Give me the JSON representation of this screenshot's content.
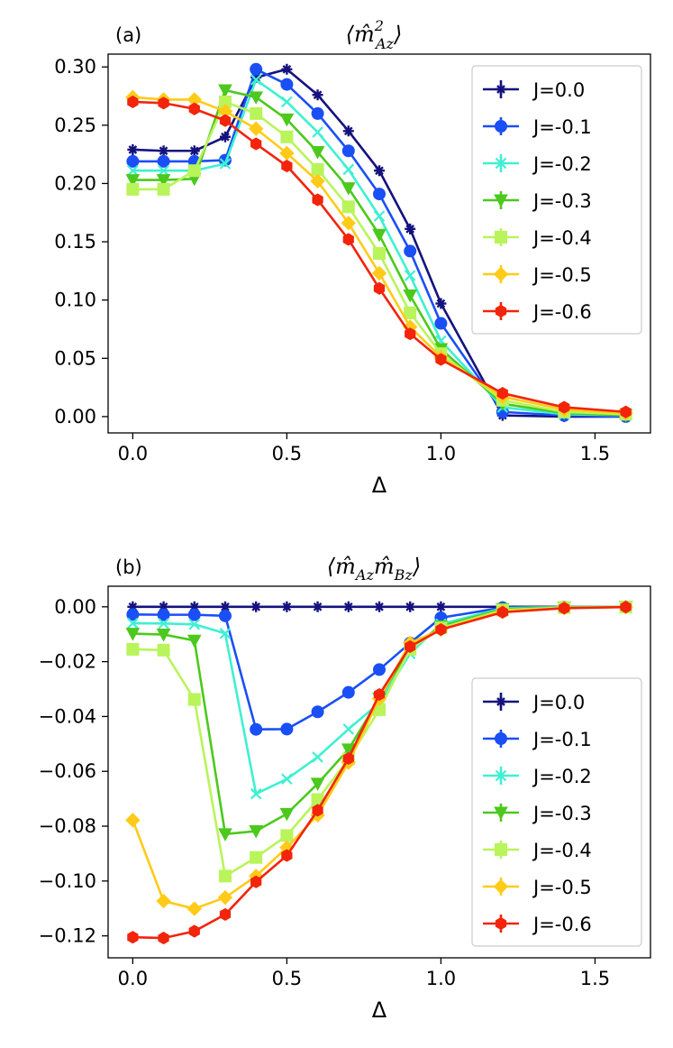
{
  "colors": {
    "J=0.0": "#14127e",
    "J=-0.1": "#1a4ff5",
    "J=-0.2": "#3ef0d2",
    "J=-0.3": "#4cc91c",
    "J=-0.4": "#b9f45a",
    "J=-0.5": "#ffcb18",
    "J=-0.6": "#f2240b"
  },
  "chart_data": [
    {
      "type": "line",
      "panel_label": "(a)",
      "title": "⟨m̂²Az⟩",
      "title_base": "⟨m̂",
      "title_sup": "2",
      "title_sub": "Az",
      "title_close": "⟩",
      "xlabel": "Δ",
      "ylabel": "",
      "xlim": [
        -0.08,
        1.68
      ],
      "ylim": [
        -0.014,
        0.311
      ],
      "xticks": [
        0.0,
        0.5,
        1.0,
        1.5
      ],
      "xtick_labels": [
        "0.0",
        "0.5",
        "1.0",
        "1.5"
      ],
      "yticks": [
        0.0,
        0.05,
        0.1,
        0.15,
        0.2,
        0.25,
        0.3
      ],
      "ytick_labels": [
        "0.00",
        "0.05",
        "0.10",
        "0.15",
        "0.20",
        "0.25",
        "0.30"
      ],
      "legend_position": "top-right",
      "x": [
        0.0,
        0.1,
        0.2,
        0.3,
        0.4,
        0.5,
        0.6,
        0.7,
        0.8,
        0.9,
        1.0,
        1.2,
        1.4,
        1.6
      ],
      "series": [
        {
          "name": "J=0.0",
          "marker": "plus",
          "values": [
            0.229,
            0.228,
            0.228,
            0.24,
            0.291,
            0.298,
            0.276,
            0.245,
            0.211,
            0.161,
            0.097,
            0.001,
            0.0,
            0.0
          ]
        },
        {
          "name": "J=-0.1",
          "marker": "circle",
          "values": [
            0.219,
            0.219,
            0.219,
            0.22,
            0.298,
            0.285,
            0.26,
            0.228,
            0.191,
            0.142,
            0.08,
            0.004,
            0.001,
            0.0
          ]
        },
        {
          "name": "J=-0.2",
          "marker": "x",
          "values": [
            0.211,
            0.211,
            0.211,
            0.217,
            0.289,
            0.27,
            0.244,
            0.212,
            0.172,
            0.121,
            0.065,
            0.008,
            0.002,
            0.001
          ]
        },
        {
          "name": "J=-0.3",
          "marker": "tri-down",
          "values": [
            0.203,
            0.203,
            0.204,
            0.28,
            0.274,
            0.255,
            0.227,
            0.196,
            0.156,
            0.104,
            0.058,
            0.011,
            0.003,
            0.001
          ]
        },
        {
          "name": "J=-0.4",
          "marker": "square",
          "values": [
            0.195,
            0.195,
            0.211,
            0.27,
            0.26,
            0.24,
            0.212,
            0.18,
            0.14,
            0.089,
            0.054,
            0.014,
            0.004,
            0.002
          ]
        },
        {
          "name": "J=-0.5",
          "marker": "diamond",
          "values": [
            0.274,
            0.272,
            0.272,
            0.262,
            0.247,
            0.226,
            0.202,
            0.166,
            0.123,
            0.077,
            0.051,
            0.017,
            0.006,
            0.003
          ]
        },
        {
          "name": "J=-0.6",
          "marker": "hexagon",
          "values": [
            0.27,
            0.269,
            0.264,
            0.254,
            0.234,
            0.215,
            0.186,
            0.152,
            0.11,
            0.071,
            0.049,
            0.02,
            0.008,
            0.004
          ]
        }
      ]
    },
    {
      "type": "line",
      "panel_label": "(b)",
      "title": "⟨m̂Az m̂Bz⟩",
      "title_base": "⟨m̂",
      "title_sub": "Az",
      "title_base2": "m̂",
      "title_sub2": "Bz",
      "title_close": "⟩",
      "xlabel": "Δ",
      "ylabel": "",
      "xlim": [
        -0.08,
        1.68
      ],
      "ylim": [
        -0.128,
        0.0075
      ],
      "xticks": [
        0.0,
        0.5,
        1.0,
        1.5
      ],
      "xtick_labels": [
        "0.0",
        "0.5",
        "1.0",
        "1.5"
      ],
      "yticks": [
        0.0,
        -0.02,
        -0.04,
        -0.06,
        -0.08,
        -0.1,
        -0.12
      ],
      "ytick_labels": [
        "0.00",
        "−0.02",
        "−0.04",
        "−0.06",
        "−0.08",
        "−0.10",
        "−0.12"
      ],
      "legend_position": "lower-right",
      "x": [
        0.0,
        0.1,
        0.2,
        0.3,
        0.4,
        0.5,
        0.6,
        0.7,
        0.8,
        0.9,
        1.0,
        1.2,
        1.4,
        1.6
      ],
      "series": [
        {
          "name": "J=0.0",
          "marker": "plus",
          "values": [
            0.0,
            0.0,
            0.0,
            0.0,
            0.0,
            0.0,
            0.0,
            0.0,
            0.0,
            0.0,
            0.0,
            0.0,
            0.0,
            0.0
          ]
        },
        {
          "name": "J=-0.1",
          "marker": "circle",
          "values": [
            -0.0028,
            -0.0029,
            -0.0029,
            -0.0033,
            -0.0447,
            -0.0446,
            -0.0383,
            -0.0312,
            -0.0229,
            -0.0132,
            -0.004,
            -0.0003,
            -0.0001,
            0.0
          ]
        },
        {
          "name": "J=-0.2",
          "marker": "x",
          "values": [
            -0.006,
            -0.0061,
            -0.0064,
            -0.0097,
            -0.0682,
            -0.0628,
            -0.0548,
            -0.0446,
            -0.0351,
            -0.0171,
            -0.0063,
            -0.0005,
            -0.0001,
            0.0
          ]
        },
        {
          "name": "J=-0.3",
          "marker": "tri-down",
          "values": [
            -0.0098,
            -0.0101,
            -0.0123,
            -0.0829,
            -0.0818,
            -0.0755,
            -0.0645,
            -0.052,
            -0.0335,
            -0.0151,
            -0.0071,
            -0.0008,
            -0.0002,
            0.0
          ]
        },
        {
          "name": "J=-0.4",
          "marker": "square",
          "values": [
            -0.0155,
            -0.0158,
            -0.0338,
            -0.0982,
            -0.0914,
            -0.0834,
            -0.0703,
            -0.0555,
            -0.0375,
            -0.0155,
            -0.0077,
            -0.0012,
            -0.0003,
            -0.0001
          ]
        },
        {
          "name": "J=-0.5",
          "marker": "diamond",
          "values": [
            -0.0778,
            -0.1073,
            -0.1101,
            -0.106,
            -0.0982,
            -0.0878,
            -0.076,
            -0.0568,
            -0.0335,
            -0.0132,
            -0.0083,
            -0.0016,
            -0.0004,
            -0.0001
          ]
        },
        {
          "name": "J=-0.6",
          "marker": "hexagon",
          "values": [
            -0.1205,
            -0.1208,
            -0.1183,
            -0.1122,
            -0.1003,
            -0.0907,
            -0.0742,
            -0.0553,
            -0.032,
            -0.0145,
            -0.0083,
            -0.002,
            -0.0005,
            -0.0001
          ]
        }
      ]
    }
  ]
}
